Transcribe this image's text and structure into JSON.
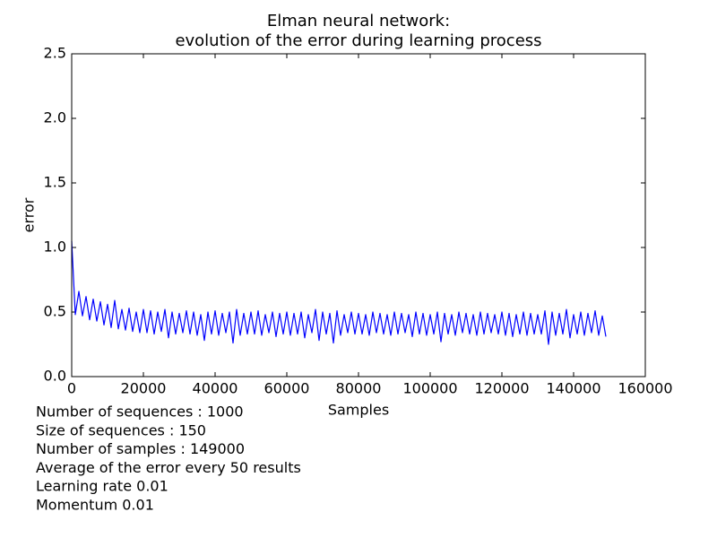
{
  "chart_data": {
    "type": "line",
    "title_lines": [
      "Elman neural network:",
      "evolution of the error during learning process"
    ],
    "x_label": "Samples",
    "y_label": "error",
    "xlim": [
      0,
      160000
    ],
    "xticks": [
      0,
      20000,
      40000,
      60000,
      80000,
      100000,
      120000,
      140000,
      160000
    ],
    "ylim": [
      0,
      2.5
    ],
    "yticks": [
      {
        "value": 0,
        "label": "0.0"
      },
      0.5,
      {
        "value": 1,
        "label": "1.0"
      },
      1.5,
      {
        "value": 2,
        "label": "2.0"
      },
      2.5
    ],
    "x": [
      0,
      1000,
      2000,
      3000,
      4000,
      5000,
      6000,
      7000,
      8000,
      9000,
      10000,
      11000,
      12000,
      13000,
      14000,
      15000,
      16000,
      17000,
      18000,
      19000,
      20000,
      21000,
      22000,
      23000,
      24000,
      25000,
      26000,
      27000,
      28000,
      29000,
      30000,
      31000,
      32000,
      33000,
      34000,
      35000,
      36000,
      37000,
      38000,
      39000,
      40000,
      41000,
      42000,
      43000,
      44000,
      45000,
      46000,
      47000,
      48000,
      49000,
      50000,
      51000,
      52000,
      53000,
      54000,
      55000,
      56000,
      57000,
      58000,
      59000,
      60000,
      61000,
      62000,
      63000,
      64000,
      65000,
      66000,
      67000,
      68000,
      69000,
      70000,
      71000,
      72000,
      73000,
      74000,
      75000,
      76000,
      77000,
      78000,
      79000,
      80000,
      81000,
      82000,
      83000,
      84000,
      85000,
      86000,
      87000,
      88000,
      89000,
      90000,
      91000,
      92000,
      93000,
      94000,
      95000,
      96000,
      97000,
      98000,
      99000,
      100000,
      101000,
      102000,
      103000,
      104000,
      105000,
      106000,
      107000,
      108000,
      109000,
      110000,
      111000,
      112000,
      113000,
      114000,
      115000,
      116000,
      117000,
      118000,
      119000,
      120000,
      121000,
      122000,
      123000,
      124000,
      125000,
      126000,
      127000,
      128000,
      129000,
      130000,
      131000,
      132000,
      133000,
      134000,
      135000,
      136000,
      137000,
      138000,
      139000,
      140000,
      141000,
      142000,
      143000,
      144000,
      145000,
      146000,
      147000,
      148000,
      149000
    ],
    "series": [
      {
        "color": "#0000ff",
        "values": [
          1.05,
          0.48,
          0.66,
          0.47,
          0.62,
          0.44,
          0.6,
          0.43,
          0.58,
          0.4,
          0.56,
          0.38,
          0.59,
          0.37,
          0.52,
          0.36,
          0.53,
          0.35,
          0.5,
          0.34,
          0.52,
          0.34,
          0.51,
          0.33,
          0.5,
          0.35,
          0.52,
          0.3,
          0.5,
          0.33,
          0.49,
          0.34,
          0.51,
          0.33,
          0.5,
          0.32,
          0.48,
          0.28,
          0.5,
          0.33,
          0.51,
          0.32,
          0.49,
          0.34,
          0.5,
          0.26,
          0.52,
          0.32,
          0.49,
          0.33,
          0.5,
          0.33,
          0.51,
          0.32,
          0.48,
          0.34,
          0.5,
          0.31,
          0.49,
          0.33,
          0.5,
          0.32,
          0.49,
          0.33,
          0.5,
          0.3,
          0.48,
          0.34,
          0.52,
          0.28,
          0.5,
          0.33,
          0.49,
          0.26,
          0.51,
          0.32,
          0.48,
          0.34,
          0.5,
          0.33,
          0.49,
          0.33,
          0.48,
          0.32,
          0.5,
          0.34,
          0.49,
          0.33,
          0.48,
          0.32,
          0.5,
          0.33,
          0.49,
          0.34,
          0.48,
          0.31,
          0.5,
          0.33,
          0.49,
          0.32,
          0.48,
          0.33,
          0.5,
          0.27,
          0.49,
          0.33,
          0.48,
          0.32,
          0.5,
          0.34,
          0.49,
          0.33,
          0.48,
          0.32,
          0.5,
          0.33,
          0.49,
          0.34,
          0.48,
          0.33,
          0.5,
          0.32,
          0.49,
          0.31,
          0.48,
          0.33,
          0.5,
          0.32,
          0.49,
          0.33,
          0.48,
          0.33,
          0.51,
          0.25,
          0.5,
          0.32,
          0.49,
          0.33,
          0.52,
          0.3,
          0.48,
          0.33,
          0.5,
          0.32,
          0.49,
          0.34,
          0.51,
          0.32,
          0.47,
          0.31
        ]
      }
    ],
    "notes": [
      "Number of sequences : 1000",
      "Size of sequences : 150",
      "Number of samples : 149000",
      "Average of the error every 50 results",
      "Learning rate 0.01",
      "Momentum 0.01"
    ]
  }
}
